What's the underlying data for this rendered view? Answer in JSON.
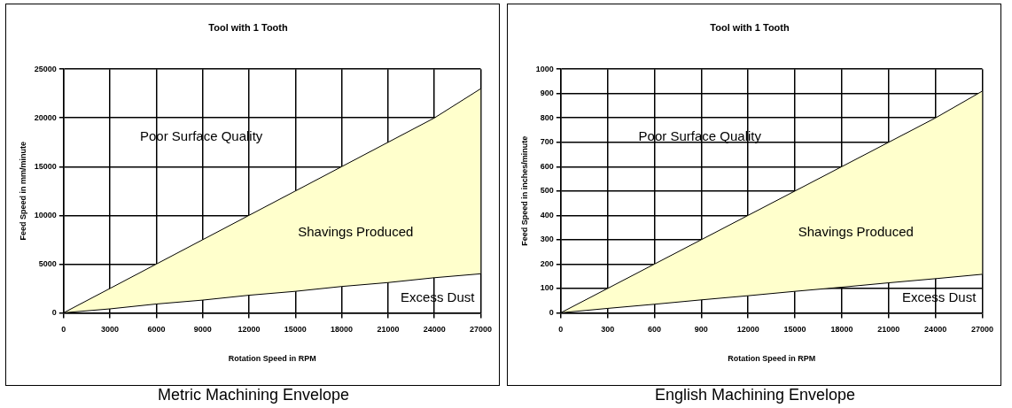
{
  "chart_data": [
    {
      "type": "line",
      "title": "Tool with 1 Tooth",
      "xlabel": "Rotation Speed in RPM",
      "ylabel": "Feed Speed in mm/minute",
      "categories": [
        "0",
        "3000",
        "6000",
        "9000",
        "12000",
        "15000",
        "18000",
        "21000",
        "24000",
        "27000"
      ],
      "series": [
        {
          "color": "#000000",
          "values": [
            0,
            400,
            900,
            1300,
            1800,
            2200,
            2700,
            3100,
            3600,
            4000
          ]
        },
        {
          "type": "area",
          "color": "#ffffcc",
          "values": [
            0,
            2500,
            5000,
            7500,
            10000,
            12500,
            15000,
            17500,
            20000,
            23000
          ]
        }
      ],
      "ylim": [
        0,
        25000
      ],
      "yticks": [
        0,
        5000,
        10000,
        15000,
        20000,
        25000
      ],
      "grid": true,
      "annotations": [
        "Poor Surface Quality",
        "Shavings Produced",
        "Excess Dust",
        "Metric Machining Envelope"
      ]
    },
    {
      "type": "line",
      "title": "Tool with 1 Tooth",
      "xlabel": "Rotation Speed in RPM",
      "ylabel": "Feed Speed in inches/minute",
      "categories": [
        "0",
        "300",
        "600",
        "900",
        "12000",
        "15000",
        "18000",
        "21000",
        "24000",
        "27000"
      ],
      "series": [
        {
          "color": "#000000",
          "values": [
            0,
            18,
            35,
            53,
            70,
            88,
            105,
            123,
            140,
            158
          ]
        },
        {
          "type": "area",
          "color": "#ffffcc",
          "values": [
            0,
            100,
            200,
            300,
            400,
            500,
            600,
            700,
            800,
            910
          ]
        }
      ],
      "ylim": [
        0,
        1000
      ],
      "yticks": [
        0,
        100,
        200,
        300,
        400,
        500,
        600,
        700,
        800,
        900,
        1000
      ],
      "grid": true,
      "annotations": [
        "Poor Surface Quality",
        "Shavings Produced",
        "Excess Dust",
        "English Machining Envelope"
      ]
    }
  ]
}
